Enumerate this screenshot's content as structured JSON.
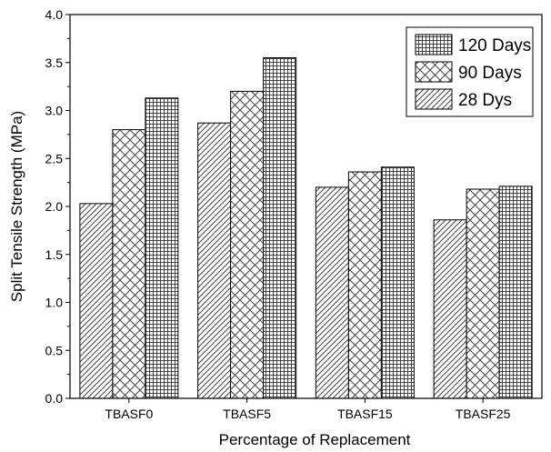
{
  "chart_data": {
    "type": "bar",
    "xlabel": "Percentage of Replacement",
    "ylabel": "Split Tensile Strength (MPa)",
    "ylim": [
      0,
      4.0
    ],
    "yticks": [
      "0.0",
      "0.5",
      "1.0",
      "1.5",
      "2.0",
      "2.5",
      "3.0",
      "3.5",
      "4.0"
    ],
    "categories": [
      "TBASF0",
      "TBASF5",
      "TBASF15",
      "TBASF25"
    ],
    "series": [
      {
        "name": "28 Dys",
        "pattern": "diagonal-hatch",
        "values": [
          2.03,
          2.87,
          2.2,
          1.86
        ]
      },
      {
        "name": "90 Days",
        "pattern": "cross-hatch",
        "values": [
          2.8,
          3.2,
          2.36,
          2.18
        ]
      },
      {
        "name": "120 Days",
        "pattern": "grid",
        "values": [
          3.13,
          3.55,
          2.41,
          2.21
        ]
      }
    ],
    "legend_order": [
      "120 Days",
      "90 Days",
      "28 Dys"
    ],
    "legend_position": "top-right",
    "grid": false,
    "colors": {
      "stroke": "#000000",
      "fill": "#ffffff",
      "hatch": "#444444"
    }
  }
}
